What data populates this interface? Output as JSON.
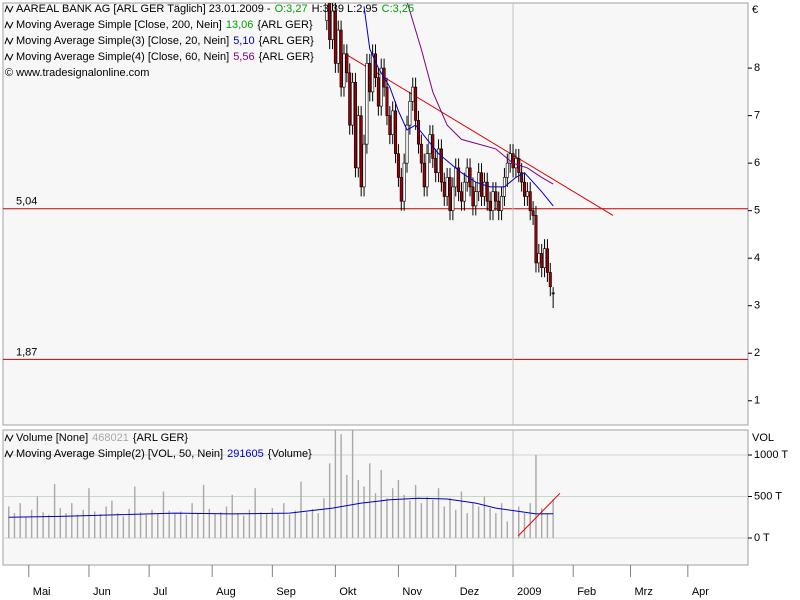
{
  "chart_data": [
    {
      "type": "candlestick",
      "title": "AAREAL BANK AG [ARL GER  Täglich] 23.01.2009 -",
      "open_label": "O:3,27",
      "high_low_label": "H:3,39 L:2,95",
      "close_label": "C:3,25",
      "quote_color": "#00a000",
      "copyright": "© www.tradesignalonline.com",
      "y_axis_label": "€",
      "xlim": [
        0,
        260
      ],
      "ylim": [
        0.49,
        9.37
      ],
      "yticks": [
        1,
        2,
        3,
        4,
        5,
        6,
        7,
        8
      ],
      "up_color": "#ffffff",
      "down_color": "#a00000",
      "x": [
        113,
        114,
        115,
        116,
        117,
        118,
        119,
        120,
        121,
        122,
        123,
        124,
        125,
        126,
        127,
        128,
        129,
        130,
        131,
        132,
        133,
        134,
        135,
        136,
        137,
        138,
        139,
        140,
        141,
        142,
        143,
        144,
        145,
        146,
        147,
        148,
        149,
        150,
        151,
        152,
        153,
        154,
        155,
        156,
        157,
        158,
        159,
        160,
        161,
        162,
        163,
        164,
        165,
        166,
        167,
        168,
        169,
        170,
        171,
        172,
        173,
        174,
        175,
        176,
        177,
        178,
        179,
        180,
        181,
        182,
        183,
        184,
        185,
        186,
        187,
        188,
        189,
        190,
        191,
        192
      ],
      "open": [
        9.0,
        9.5,
        8.6,
        9.2,
        8.1,
        8.8,
        7.6,
        8.3,
        7.9,
        6.8,
        7.7,
        5.9,
        7.0,
        5.5,
        6.4,
        8.1,
        7.5,
        8.3,
        7.8,
        7.2,
        8.0,
        7.6,
        7.0,
        6.6,
        7.1,
        6.2,
        5.7,
        5.2,
        6.0,
        6.8,
        7.3,
        7.6,
        6.9,
        6.4,
        6.0,
        5.5,
        6.2,
        6.6,
        6.1,
        5.8,
        6.3,
        5.6,
        5.3,
        5.7,
        5.0,
        5.5,
        5.9,
        5.4,
        5.2,
        5.6,
        5.9,
        5.5,
        5.1,
        5.4,
        5.8,
        5.3,
        5.6,
        5.2,
        5.0,
        5.4,
        5.2,
        5.0,
        5.3,
        5.7,
        6.0,
        6.2,
        5.9,
        6.1,
        5.8,
        5.6,
        5.3,
        5.4,
        5.0,
        4.9,
        3.9,
        4.1,
        3.8,
        4.2,
        3.7,
        3.27
      ],
      "high": [
        9.7,
        9.7,
        9.4,
        9.4,
        9.0,
        9.0,
        8.5,
        8.5,
        8.1,
        7.9,
        7.9,
        7.2,
        7.2,
        6.6,
        8.3,
        8.3,
        8.5,
        8.5,
        8.0,
        8.2,
        8.2,
        7.8,
        7.2,
        7.3,
        7.3,
        6.4,
        5.9,
        6.2,
        7.0,
        7.5,
        7.8,
        7.8,
        7.1,
        6.6,
        6.2,
        6.4,
        6.8,
        6.8,
        6.3,
        6.5,
        6.5,
        5.8,
        5.9,
        5.9,
        5.7,
        6.1,
        6.1,
        5.6,
        5.8,
        6.1,
        6.1,
        5.7,
        5.6,
        6.0,
        6.0,
        5.8,
        5.8,
        5.4,
        5.6,
        5.6,
        5.4,
        5.5,
        5.9,
        6.2,
        6.4,
        6.4,
        6.3,
        6.3,
        6.0,
        5.8,
        5.6,
        5.6,
        5.2,
        5.1,
        4.3,
        4.3,
        4.4,
        4.4,
        3.9,
        3.39
      ],
      "low": [
        8.8,
        8.4,
        8.4,
        7.9,
        7.9,
        7.4,
        7.4,
        7.7,
        6.6,
        6.6,
        5.7,
        5.7,
        5.3,
        5.3,
        6.2,
        7.3,
        7.3,
        7.6,
        7.0,
        7.0,
        7.4,
        6.8,
        6.4,
        6.4,
        6.0,
        5.5,
        5.0,
        5.0,
        5.8,
        6.6,
        7.1,
        6.7,
        6.2,
        5.8,
        5.3,
        5.3,
        6.0,
        5.9,
        5.6,
        5.6,
        5.4,
        5.1,
        5.1,
        4.8,
        4.8,
        5.3,
        5.2,
        5.0,
        5.0,
        5.4,
        5.3,
        4.9,
        4.9,
        5.2,
        5.1,
        5.1,
        5.0,
        4.8,
        4.8,
        5.0,
        4.8,
        4.8,
        5.1,
        5.5,
        5.8,
        5.7,
        5.7,
        5.6,
        5.4,
        5.1,
        5.1,
        4.8,
        4.7,
        3.7,
        3.7,
        3.6,
        3.6,
        3.5,
        3.2,
        2.95
      ],
      "close": [
        9.5,
        8.6,
        9.2,
        8.1,
        8.8,
        7.6,
        8.3,
        7.9,
        6.8,
        7.7,
        5.9,
        7.0,
        5.5,
        6.4,
        8.1,
        7.5,
        8.3,
        7.8,
        7.2,
        8.0,
        7.6,
        7.0,
        6.6,
        7.1,
        6.2,
        5.7,
        5.2,
        6.0,
        6.8,
        7.3,
        7.6,
        6.9,
        6.4,
        6.0,
        5.5,
        6.2,
        6.6,
        6.1,
        5.8,
        6.3,
        5.6,
        5.3,
        5.7,
        5.0,
        5.5,
        5.9,
        5.4,
        5.2,
        5.6,
        5.9,
        5.5,
        5.1,
        5.4,
        5.8,
        5.3,
        5.6,
        5.2,
        5.0,
        5.4,
        5.2,
        5.0,
        5.3,
        5.7,
        6.0,
        6.2,
        5.9,
        6.1,
        5.8,
        5.6,
        5.3,
        5.4,
        5.0,
        4.9,
        3.9,
        4.1,
        3.8,
        4.2,
        3.7,
        3.4,
        3.25
      ],
      "indicators": [
        {
          "name": "Moving Average Simple [Close, 200, Nein]",
          "value_label": "13,06",
          "source": "{ARL GER}",
          "color": "#00a000"
        },
        {
          "name": "Moving Average Simple(3) [Close, 20, Nein]",
          "value_label": "5,10",
          "source": "{ARL GER}",
          "color": "#0000c0",
          "x": [
            126,
            128,
            131,
            135,
            138,
            141,
            144,
            148,
            152,
            156,
            160,
            165,
            170,
            175,
            179,
            182,
            185,
            188,
            192
          ],
          "values": [
            9.3,
            8.4,
            8.0,
            7.6,
            7.1,
            6.7,
            6.8,
            6.5,
            6.2,
            6.0,
            5.8,
            5.6,
            5.5,
            5.5,
            5.7,
            5.8,
            5.6,
            5.4,
            5.1
          ]
        },
        {
          "name": "Moving Average Simple(4) [Close, 60, Nein]",
          "value_label": "5,56",
          "source": "{ARL GER}",
          "color": "#800080",
          "x": [
            141,
            146,
            150,
            155,
            160,
            166,
            172,
            178,
            183,
            188,
            192
          ],
          "values": [
            9.4,
            8.4,
            7.5,
            6.8,
            6.5,
            6.4,
            6.3,
            6.0,
            5.9,
            5.7,
            5.56
          ]
        }
      ],
      "trendline": {
        "x": [
          119.4,
          212.9
        ],
        "values": [
          8.3,
          4.9
        ],
        "color": "#e00000"
      },
      "levels": [
        {
          "value": 5.04,
          "label": "5,04"
        },
        {
          "value": 1.87,
          "label": "1,87"
        }
      ],
      "level_color": "#c00000"
    },
    {
      "type": "bar",
      "y_axis_label": "VOL",
      "xlim": [
        0,
        260
      ],
      "ylim": [
        -325,
        1301
      ],
      "yticks": [
        {
          "value": 0,
          "label": "0 T"
        },
        {
          "value": 500,
          "label": "500 T"
        },
        {
          "value": 1000,
          "label": "1000 T"
        }
      ],
      "grid": true,
      "xticks": [
        {
          "value": 9,
          "label": "Mai"
        },
        {
          "value": 30,
          "label": "Jun"
        },
        {
          "value": 51,
          "label": "Jul"
        },
        {
          "value": 73,
          "label": "Aug"
        },
        {
          "value": 94,
          "label": "Sep"
        },
        {
          "value": 116,
          "label": "Okt"
        },
        {
          "value": 138,
          "label": "Nov"
        },
        {
          "value": 158,
          "label": "Dez"
        },
        {
          "value": 178,
          "label": "2009"
        },
        {
          "value": 199,
          "label": "Feb"
        },
        {
          "value": 219,
          "label": "Mrz"
        },
        {
          "value": 239,
          "label": "Apr"
        }
      ],
      "series": [
        {
          "name": "Volume [None]",
          "value_label": "468021",
          "source": "{ARL GER}",
          "color": "#a8a8a8",
          "x": [
            2,
            4,
            6,
            8,
            10,
            12,
            14,
            16,
            18,
            20,
            22,
            24,
            26,
            28,
            30,
            32,
            34,
            36,
            38,
            40,
            42,
            44,
            46,
            48,
            50,
            52,
            54,
            56,
            58,
            60,
            62,
            64,
            66,
            68,
            70,
            72,
            74,
            76,
            78,
            80,
            82,
            84,
            86,
            88,
            90,
            92,
            94,
            96,
            98,
            100,
            102,
            104,
            106,
            108,
            110,
            112,
            114,
            116,
            118,
            120,
            122,
            124,
            126,
            128,
            130,
            132,
            134,
            136,
            138,
            140,
            142,
            144,
            146,
            148,
            150,
            152,
            154,
            156,
            158,
            160,
            162,
            164,
            166,
            168,
            170,
            172,
            174,
            176,
            178,
            180,
            182,
            184,
            186,
            188,
            190,
            192
          ],
          "values": [
            380,
            300,
            420,
            260,
            340,
            500,
            310,
            280,
            650,
            360,
            300,
            420,
            280,
            340,
            600,
            320,
            290,
            380,
            450,
            300,
            260,
            350,
            620,
            310,
            280,
            340,
            300,
            560,
            330,
            290,
            320,
            280,
            420,
            300,
            640,
            350,
            290,
            310,
            380,
            520,
            300,
            270,
            340,
            600,
            310,
            290,
            360,
            300,
            420,
            280,
            330,
            680,
            310,
            350,
            300,
            480,
            900,
            1300,
            1250,
            760,
            1300,
            700,
            620,
            900,
            540,
            820,
            480,
            600,
            700,
            520,
            450,
            640,
            420,
            500,
            460,
            600,
            380,
            480,
            340,
            560,
            300,
            420,
            380,
            500,
            360,
            300,
            420,
            200,
            340,
            380,
            300,
            420,
            1000,
            360,
            300,
            468.021
          ]
        },
        {
          "name": "Moving Average Simple(2) [VOL, 50, Nein]",
          "value_label": "291605",
          "source": "{Volume}",
          "color": "#0000c0",
          "x": [
            2,
            20,
            40,
            60,
            80,
            100,
            115,
            125,
            135,
            145,
            155,
            165,
            172,
            180,
            186,
            192
          ],
          "values": [
            250,
            260,
            280,
            300,
            290,
            300,
            360,
            420,
            460,
            480,
            470,
            420,
            360,
            320,
            290,
            291.605
          ]
        }
      ],
      "trendline": {
        "x": [
          179.8,
          194.4
        ],
        "values": [
          25,
          540
        ],
        "color": "#e00000"
      }
    }
  ]
}
